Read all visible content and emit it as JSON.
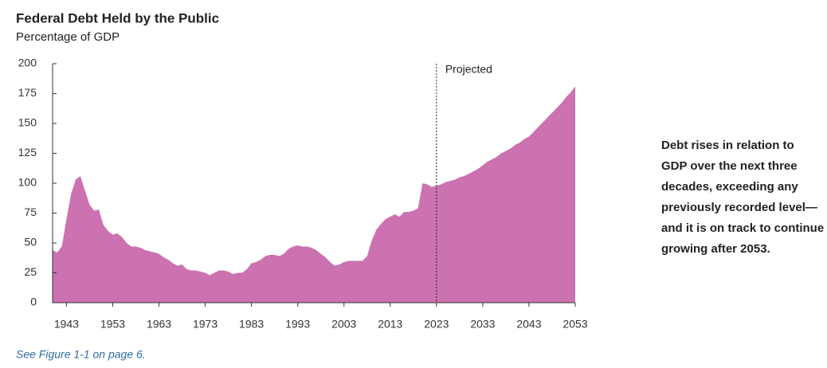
{
  "chart_data": {
    "type": "area",
    "title": "Federal Debt Held by the Public",
    "subtitle": "Percentage of GDP",
    "annotation": "Projected",
    "projected_from": 2023,
    "side_note": [
      "Debt rises in relation to",
      "GDP over the next three",
      "decades, exceeding any",
      "previously recorded level—",
      "and it is on track to continue",
      "growing after 2053."
    ],
    "footnote": "See Figure 1-1 on page 6.",
    "color": "#cc72b0",
    "x": [
      1940,
      1941,
      1942,
      1943,
      1944,
      1945,
      1946,
      1947,
      1948,
      1949,
      1950,
      1951,
      1952,
      1953,
      1954,
      1955,
      1956,
      1957,
      1958,
      1959,
      1960,
      1961,
      1962,
      1963,
      1964,
      1965,
      1966,
      1967,
      1968,
      1969,
      1970,
      1971,
      1972,
      1973,
      1974,
      1975,
      1976,
      1977,
      1978,
      1979,
      1980,
      1981,
      1982,
      1983,
      1984,
      1985,
      1986,
      1987,
      1988,
      1989,
      1990,
      1991,
      1992,
      1993,
      1994,
      1995,
      1996,
      1997,
      1998,
      1999,
      2000,
      2001,
      2002,
      2003,
      2004,
      2005,
      2006,
      2007,
      2008,
      2009,
      2010,
      2011,
      2012,
      2013,
      2014,
      2015,
      2016,
      2017,
      2018,
      2019,
      2020,
      2021,
      2022,
      2023,
      2024,
      2025,
      2026,
      2027,
      2028,
      2029,
      2030,
      2031,
      2032,
      2033,
      2034,
      2035,
      2036,
      2037,
      2038,
      2039,
      2040,
      2041,
      2042,
      2043,
      2044,
      2045,
      2046,
      2047,
      2048,
      2049,
      2050,
      2051,
      2052,
      2053
    ],
    "values": [
      44,
      42,
      47,
      70,
      91,
      103,
      106,
      94,
      82,
      77,
      78,
      65,
      60,
      57,
      58,
      55,
      50,
      47,
      47,
      46,
      44,
      43,
      42,
      41,
      38,
      36,
      33,
      31,
      32,
      28,
      27,
      27,
      26,
      25,
      23,
      25,
      27,
      27,
      26,
      24,
      25,
      25,
      28,
      33,
      34,
      36,
      39,
      40,
      40,
      39,
      41,
      45,
      47,
      48,
      47,
      47,
      46,
      44,
      41,
      38,
      34,
      31,
      32,
      34,
      35,
      35,
      35,
      35,
      39,
      52,
      61,
      66,
      70,
      72,
      74,
      72,
      76,
      76,
      77,
      79,
      100,
      99,
      97,
      98,
      99,
      101,
      102,
      103,
      105,
      106,
      108,
      110,
      112,
      115,
      118,
      120,
      122,
      125,
      127,
      129,
      132,
      134,
      137,
      139,
      143,
      147,
      151,
      155,
      159,
      163,
      167,
      172,
      176,
      181
    ],
    "xlim": [
      1940,
      2053
    ],
    "xticks": [
      1943,
      1953,
      1963,
      1973,
      1983,
      1993,
      2003,
      2013,
      2023,
      2033,
      2043,
      2053
    ],
    "ylim": [
      0,
      200
    ],
    "yticks": [
      0,
      25,
      50,
      75,
      100,
      125,
      150,
      175,
      200
    ]
  }
}
